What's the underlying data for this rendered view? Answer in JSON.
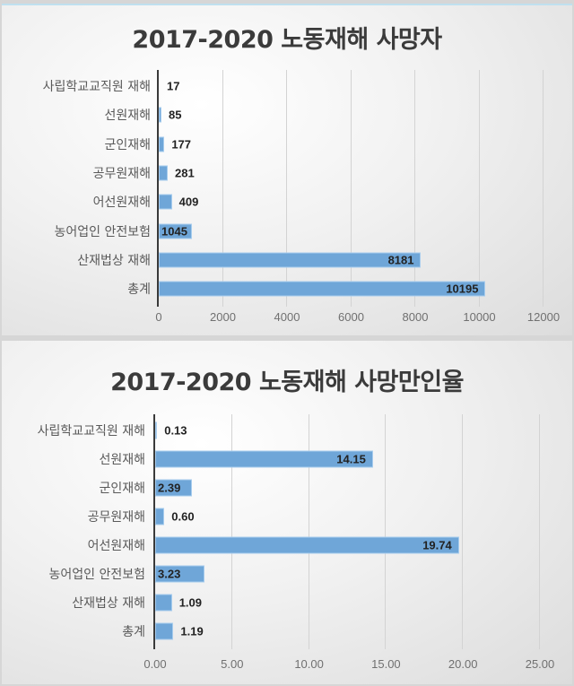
{
  "chart_data": [
    {
      "type": "bar",
      "orientation": "horizontal",
      "title": "2017-2020 노동재해 사망자",
      "categories": [
        "사립학교교직원 재해",
        "선원재해",
        "군인재해",
        "공무원재해",
        "어선원재해",
        "농어업인 안전보험",
        "산재법상 재해",
        "총계"
      ],
      "values": [
        17,
        85,
        177,
        281,
        409,
        1045,
        8181,
        10195
      ],
      "value_labels": [
        "17",
        "85",
        "177",
        "281",
        "409",
        "1045",
        "8181",
        "10195"
      ],
      "xlabel": "",
      "ylabel": "",
      "xlim": [
        0,
        12000
      ],
      "xticks": [
        "0",
        "2000",
        "4000",
        "6000",
        "8000",
        "10000",
        "12000"
      ],
      "grid": true,
      "bar_color": "#6fa6d8"
    },
    {
      "type": "bar",
      "orientation": "horizontal",
      "title": "2017-2020 노동재해 사망만인율",
      "categories": [
        "사립학교교직원 재해",
        "선원재해",
        "군인재해",
        "공무원재해",
        "어선원재해",
        "농어업인 안전보험",
        "산재법상 재해",
        "총계"
      ],
      "values": [
        0.13,
        14.15,
        2.39,
        0.6,
        19.74,
        3.23,
        1.09,
        1.19
      ],
      "value_labels": [
        "0.13",
        "14.15",
        "2.39",
        "0.60",
        "19.74",
        "3.23",
        "1.09",
        "1.19"
      ],
      "xlabel": "",
      "ylabel": "",
      "xlim": [
        0,
        25
      ],
      "xticks": [
        "0.00",
        "5.00",
        "10.00",
        "15.00",
        "20.00",
        "25.00"
      ],
      "grid": true,
      "bar_color": "#6fa6d8"
    }
  ]
}
